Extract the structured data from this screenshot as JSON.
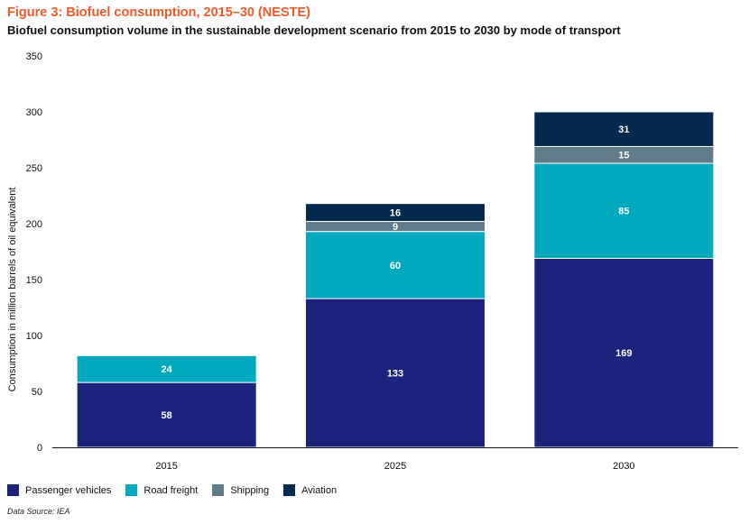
{
  "figure": {
    "title": "Figure 3: Biofuel consumption, 2015–30 (NESTE)",
    "subtitle": "Biofuel consumption volume in the sustainable development scenario from 2015 to 2030 by mode of transport",
    "source": "Data Source: IEA"
  },
  "chart_data": {
    "type": "bar",
    "stacked": true,
    "categories": [
      "2015",
      "2025",
      "2030"
    ],
    "series": [
      {
        "name": "Passenger vehicles",
        "color": "#1b237d",
        "values": [
          58,
          133,
          169
        ]
      },
      {
        "name": "Road freight",
        "color": "#00a9bd",
        "values": [
          24,
          60,
          85
        ]
      },
      {
        "name": "Shipping",
        "color": "#607c8a",
        "values": [
          null,
          9,
          15
        ]
      },
      {
        "name": "Aviation",
        "color": "#03294f",
        "values": [
          null,
          16,
          31
        ]
      }
    ],
    "ylabel": "Consumption in million barrels of oil equivalent",
    "xlabel": "",
    "ylim": [
      0,
      350
    ],
    "yticks": [
      0,
      50,
      100,
      150,
      200,
      250,
      300,
      350
    ],
    "grid": false,
    "legend_position": "bottom-left",
    "data_labels": true
  }
}
